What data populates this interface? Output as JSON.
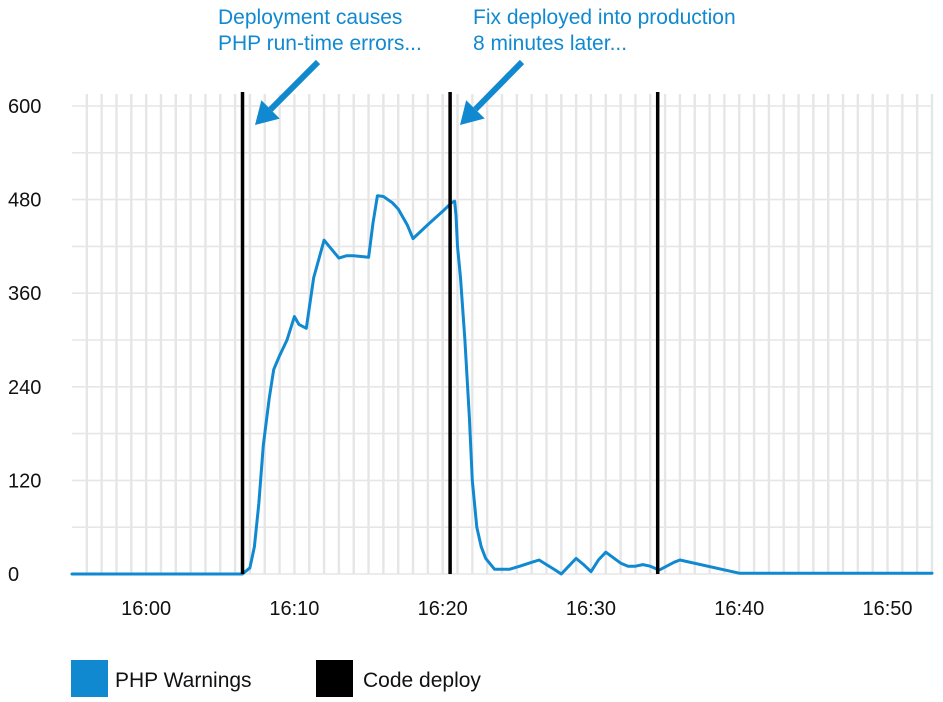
{
  "chart_data": {
    "type": "line",
    "x_ticks": [
      "16:00",
      "16:10",
      "16:20",
      "16:30",
      "16:40",
      "16:50"
    ],
    "y_ticks": [
      0,
      120,
      240,
      360,
      480,
      600
    ],
    "ylim": [
      0,
      600
    ],
    "xlim": [
      "15:55",
      "16:53"
    ],
    "grid": true,
    "legend_position": "bottom-left",
    "series": [
      {
        "name": "PHP Warnings",
        "color": "#1189d0",
        "x": [
          "15:55",
          "16:00",
          "16:05",
          "16:06.5",
          "16:07",
          "16:07.3",
          "16:07.6",
          "16:07.9",
          "16:08.3",
          "16:08.6",
          "16:09",
          "16:09.5",
          "16:10",
          "16:10.3",
          "16:10.8",
          "16:11.3",
          "16:12",
          "16:13",
          "16:13.5",
          "16:14",
          "16:15",
          "16:15.3",
          "16:15.6",
          "16:16",
          "16:16.6",
          "16:17",
          "16:17.6",
          "16:18",
          "16:19",
          "16:20",
          "16:20.6",
          "16:20.8",
          "16:20.9",
          "16:21",
          "16:21.2",
          "16:21.5",
          "16:21.8",
          "16:22",
          "16:22.3",
          "16:22.6",
          "16:22.9",
          "16:23.5",
          "16:24.5",
          "16:25.2",
          "16:26",
          "16:26.5",
          "16:27",
          "16:27.6",
          "16:28",
          "16:28.5",
          "16:29",
          "16:29.5",
          "16:30",
          "16:30.5",
          "16:31",
          "16:32",
          "16:32.5",
          "16:33",
          "16:33.5",
          "16:34",
          "16:34.6",
          "16:35.1",
          "16:35.6",
          "16:36",
          "16:40",
          "16:50",
          "16:53"
        ],
        "y": [
          0,
          0,
          0,
          0,
          8,
          35,
          90,
          165,
          225,
          262,
          280,
          300,
          330,
          320,
          315,
          380,
          428,
          405,
          408,
          408,
          406,
          450,
          485,
          484,
          476,
          468,
          448,
          430,
          448,
          465,
          476,
          478,
          460,
          420,
          380,
          300,
          200,
          120,
          60,
          35,
          20,
          6,
          6,
          10,
          15,
          18,
          12,
          5,
          0,
          10,
          20,
          12,
          3,
          18,
          28,
          14,
          10,
          10,
          12,
          10,
          5,
          10,
          15,
          18,
          1,
          1,
          1
        ]
      },
      {
        "name": "Code deploy",
        "color": "#000000",
        "deploy_times": [
          "16:06.5",
          "16:20.5",
          "16:34.5"
        ]
      }
    ],
    "annotations": [
      {
        "lines": [
          "Deployment causes",
          "PHP run-time errors..."
        ],
        "color": "#1189d0"
      },
      {
        "lines": [
          "Fix deployed into production",
          "8 minutes later..."
        ],
        "color": "#1189d0"
      }
    ]
  }
}
